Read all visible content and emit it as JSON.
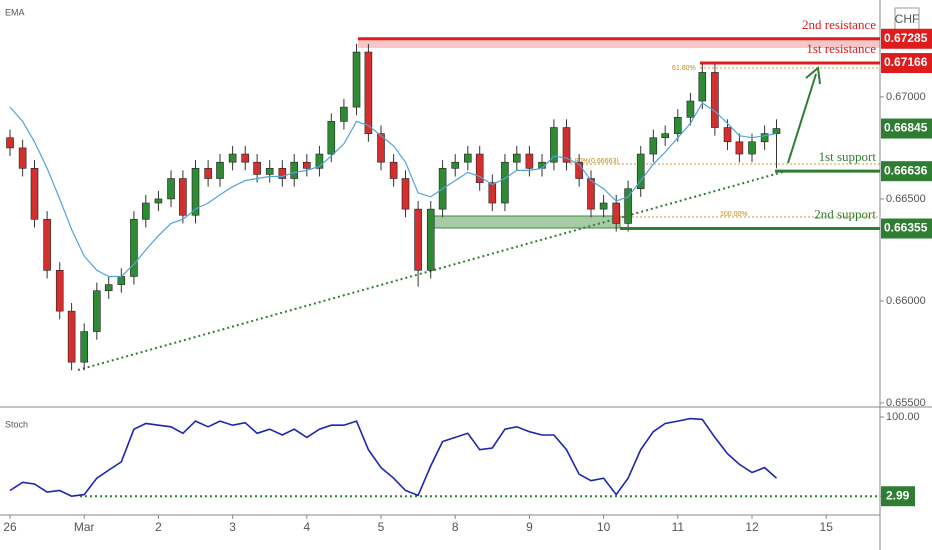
{
  "chart_data": {
    "type": "candlestick",
    "currency": "CHF",
    "up_color": "#2e8b34",
    "down_color": "#d32f2f",
    "xlim": [
      -0.135,
      11.725
    ],
    "xticks": [
      {
        "value": 0,
        "label": "26"
      },
      {
        "value": 1,
        "label": "Mar"
      },
      {
        "value": 2,
        "label": "2"
      },
      {
        "value": 3,
        "label": "3"
      },
      {
        "value": 4,
        "label": "4"
      },
      {
        "value": 5,
        "label": "5"
      },
      {
        "value": 6,
        "label": "8"
      },
      {
        "value": 7,
        "label": "9"
      },
      {
        "value": 8,
        "label": "10"
      },
      {
        "value": 9,
        "label": "11"
      },
      {
        "value": 10,
        "label": "12"
      },
      {
        "value": 11,
        "label": "15"
      }
    ],
    "ylim": [
      0.6549,
      0.67475
    ],
    "yticks": [
      {
        "value": 0.67,
        "label": "0.67000"
      },
      {
        "value": 0.665,
        "label": "0.66500"
      },
      {
        "value": 0.66,
        "label": "0.66000"
      },
      {
        "value": 0.655,
        "label": "0.65500"
      }
    ],
    "x": [
      0,
      0.17,
      0.33,
      0.5,
      0.67,
      0.83,
      1,
      1.17,
      1.33,
      1.5,
      1.67,
      1.83,
      2,
      2.17,
      2.33,
      2.5,
      2.67,
      2.83,
      3,
      3.17,
      3.33,
      3.5,
      3.67,
      3.83,
      4,
      4.17,
      4.33,
      4.5,
      4.67,
      4.83,
      5,
      5.17,
      5.33,
      5.5,
      5.67,
      5.83,
      6,
      6.17,
      6.33,
      6.5,
      6.67,
      6.83,
      7,
      7.17,
      7.33,
      7.5,
      7.67,
      7.83,
      8,
      8.17,
      8.33,
      8.5,
      8.67,
      8.83,
      9,
      9.17,
      9.33,
      9.5,
      9.67,
      9.83,
      10,
      10.17,
      10.33
    ],
    "candles": [
      [
        0.668,
        0.6684,
        0.6671,
        0.6675
      ],
      [
        0.6675,
        0.6679,
        0.6661,
        0.6665
      ],
      [
        0.6665,
        0.6669,
        0.6636,
        0.664
      ],
      [
        0.664,
        0.6644,
        0.6611,
        0.6615
      ],
      [
        0.6615,
        0.6619,
        0.6591,
        0.6595
      ],
      [
        0.6595,
        0.6599,
        0.6566,
        0.657
      ],
      [
        0.657,
        0.6589,
        0.6566,
        0.6585
      ],
      [
        0.6585,
        0.6609,
        0.6581,
        0.6605
      ],
      [
        0.6605,
        0.6612,
        0.6601,
        0.6608
      ],
      [
        0.6608,
        0.6616,
        0.6604,
        0.6612
      ],
      [
        0.6612,
        0.6644,
        0.6608,
        0.664
      ],
      [
        0.664,
        0.6652,
        0.6636,
        0.6648
      ],
      [
        0.6648,
        0.6654,
        0.6644,
        0.665
      ],
      [
        0.665,
        0.6664,
        0.6646,
        0.666
      ],
      [
        0.666,
        0.6664,
        0.6638,
        0.6642
      ],
      [
        0.6642,
        0.6669,
        0.6638,
        0.6665
      ],
      [
        0.6665,
        0.6669,
        0.6656,
        0.666
      ],
      [
        0.666,
        0.6672,
        0.6656,
        0.6668
      ],
      [
        0.6668,
        0.6676,
        0.6664,
        0.6672
      ],
      [
        0.6672,
        0.6676,
        0.6664,
        0.6668
      ],
      [
        0.6668,
        0.6672,
        0.6658,
        0.6662
      ],
      [
        0.6662,
        0.6669,
        0.6658,
        0.6665
      ],
      [
        0.6665,
        0.6669,
        0.6656,
        0.666
      ],
      [
        0.666,
        0.6672,
        0.6656,
        0.6668
      ],
      [
        0.6668,
        0.6672,
        0.6661,
        0.6665
      ],
      [
        0.6665,
        0.6676,
        0.6661,
        0.6672
      ],
      [
        0.6672,
        0.6692,
        0.6668,
        0.6688
      ],
      [
        0.6688,
        0.6699,
        0.6684,
        0.6695
      ],
      [
        0.6695,
        0.6726,
        0.6691,
        0.6722
      ],
      [
        0.6722,
        0.6726,
        0.6678,
        0.6682
      ],
      [
        0.6682,
        0.6686,
        0.6664,
        0.6668
      ],
      [
        0.6668,
        0.6672,
        0.6656,
        0.666
      ],
      [
        0.666,
        0.6664,
        0.6641,
        0.6645
      ],
      [
        0.6645,
        0.6649,
        0.6607,
        0.6615
      ],
      [
        0.6615,
        0.6649,
        0.6611,
        0.6645
      ],
      [
        0.6645,
        0.6669,
        0.6641,
        0.6665
      ],
      [
        0.6665,
        0.6672,
        0.6661,
        0.6668
      ],
      [
        0.6668,
        0.6676,
        0.6664,
        0.6672
      ],
      [
        0.6672,
        0.6676,
        0.6654,
        0.6658
      ],
      [
        0.6658,
        0.6662,
        0.6644,
        0.6648
      ],
      [
        0.6648,
        0.6672,
        0.6644,
        0.6668
      ],
      [
        0.6668,
        0.6676,
        0.6664,
        0.6672
      ],
      [
        0.6672,
        0.6676,
        0.6661,
        0.6665
      ],
      [
        0.6665,
        0.6672,
        0.6661,
        0.6668
      ],
      [
        0.6668,
        0.6689,
        0.6664,
        0.6685
      ],
      [
        0.6685,
        0.6689,
        0.6664,
        0.6668
      ],
      [
        0.6668,
        0.6672,
        0.6656,
        0.666
      ],
      [
        0.666,
        0.6664,
        0.6641,
        0.6645
      ],
      [
        0.6645,
        0.6652,
        0.6641,
        0.6648
      ],
      [
        0.6648,
        0.6652,
        0.6634,
        0.6638
      ],
      [
        0.6638,
        0.6659,
        0.6634,
        0.6655
      ],
      [
        0.6655,
        0.6676,
        0.6651,
        0.6672
      ],
      [
        0.6672,
        0.6684,
        0.6668,
        0.668
      ],
      [
        0.668,
        0.6686,
        0.6676,
        0.6682
      ],
      [
        0.6682,
        0.6694,
        0.6678,
        0.669
      ],
      [
        0.669,
        0.6702,
        0.6686,
        0.6698
      ],
      [
        0.6698,
        0.6716,
        0.6694,
        0.6712
      ],
      [
        0.6712,
        0.6716,
        0.6681,
        0.6685
      ],
      [
        0.6685,
        0.6689,
        0.6674,
        0.6678
      ],
      [
        0.6678,
        0.6682,
        0.6668,
        0.6672
      ],
      [
        0.6672,
        0.6682,
        0.6668,
        0.6678
      ],
      [
        0.6678,
        0.6686,
        0.6674,
        0.6682
      ],
      [
        0.6682,
        0.6689,
        0.6665,
        0.66845
      ]
    ],
    "ema": {
      "name": "EMA",
      "color": "#4fa3e0",
      "values": [
        0.6695,
        0.6688,
        0.6678,
        0.6665,
        0.665,
        0.6635,
        0.6622,
        0.6615,
        0.6612,
        0.6612,
        0.6618,
        0.6625,
        0.6632,
        0.6638,
        0.664,
        0.6645,
        0.6648,
        0.6652,
        0.6656,
        0.6659,
        0.666,
        0.6661,
        0.6661,
        0.6663,
        0.6664,
        0.6666,
        0.6671,
        0.6677,
        0.6688,
        0.6686,
        0.6681,
        0.6676,
        0.6668,
        0.6653,
        0.6651,
        0.6655,
        0.6659,
        0.6663,
        0.6661,
        0.6657,
        0.666,
        0.6664,
        0.6664,
        0.6665,
        0.6671,
        0.667,
        0.6667,
        0.6659,
        0.6655,
        0.6649,
        0.6651,
        0.6659,
        0.6667,
        0.6673,
        0.668,
        0.6687,
        0.6697,
        0.6693,
        0.6687,
        0.6681,
        0.668,
        0.6681,
        0.6682
      ]
    },
    "last_price": 0.66845,
    "last_color": "#2e7d32",
    "levels": [
      {
        "name": "2nd resistance",
        "value": 0.67285,
        "color": "#e01b1b"
      },
      {
        "name": "1st resistance",
        "value": 0.67166,
        "color": "#e01b1b"
      },
      {
        "name": "1st support",
        "value": 0.66636,
        "color": "#2e7d32"
      },
      {
        "name": "2nd support",
        "value": 0.66355,
        "color": "#2e7d32"
      }
    ],
    "fib_labels": [
      "61.80%",
      "61.80%(0.66663)",
      "100.00%"
    ],
    "stoch": {
      "name": "Stoch",
      "color": "#1a26b0",
      "ylim": [
        -20,
        111
      ],
      "yticks": [
        {
          "value": 100,
          "label": "100.00"
        },
        2.99
      ],
      "level_color": "#2e7d32",
      "values": [
        10,
        20,
        18,
        8,
        10,
        3,
        5,
        25,
        35,
        45,
        85,
        92,
        90,
        88,
        80,
        95,
        88,
        95,
        90,
        93,
        80,
        85,
        78,
        85,
        75,
        85,
        90,
        90,
        95,
        60,
        38,
        25,
        10,
        4,
        40,
        70,
        75,
        80,
        60,
        62,
        85,
        88,
        82,
        78,
        78,
        60,
        30,
        22,
        25,
        5,
        25,
        60,
        82,
        92,
        95,
        98,
        97,
        75,
        55,
        42,
        32,
        38,
        25
      ]
    }
  }
}
